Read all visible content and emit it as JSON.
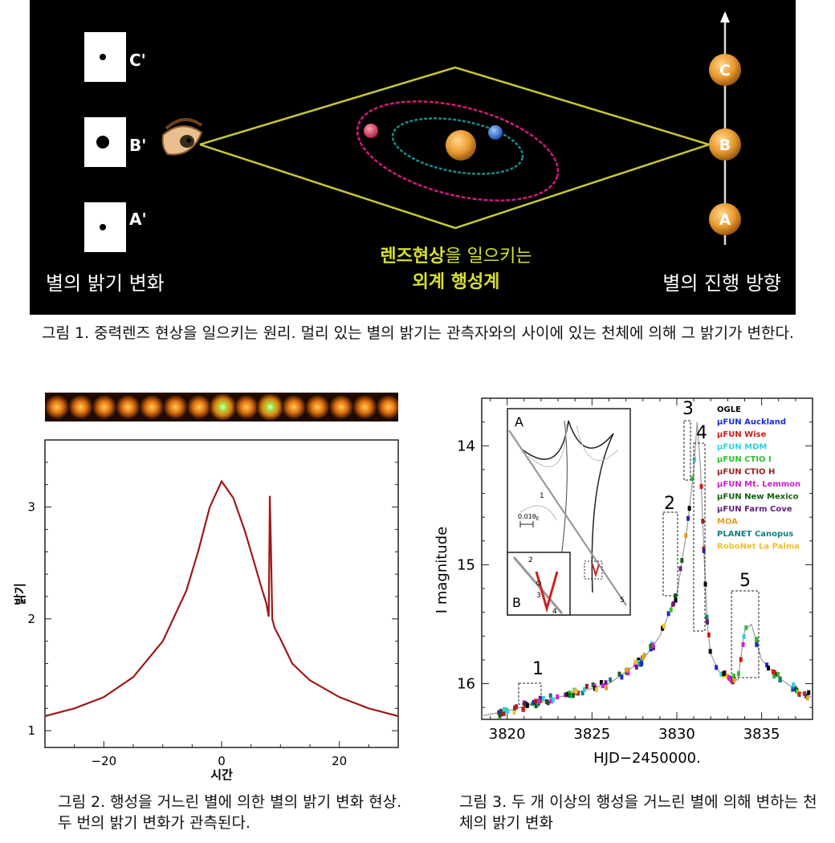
{
  "figure1": {
    "star_labels": [
      "C'",
      "B'",
      "A'"
    ],
    "positions": [
      "C",
      "B",
      "A"
    ],
    "left_caption": "별의 밝기 변화",
    "center_caption_highlight": "렌즈현상",
    "center_caption_rest": "을 일으키는",
    "center_caption_line2": "외계 행성계",
    "right_caption": "별의 진행 방향",
    "colors": {
      "lens_lines": "#c8c832",
      "orbit_outer": "#d01a7a",
      "orbit_inner": "#1a8a8a",
      "star": "#e89a30",
      "planet_red": "#e04060",
      "planet_blue": "#3070d0"
    }
  },
  "caption1": "그림 1. 중력렌즈 현상을 일으키는 원리. 멀리 있는 별의 밝기는 관측자와의 사이에 있는 천체에 의해 그 밝기가 변한다.",
  "figure2": {
    "ylabel": "밝기",
    "xlabel": "시간",
    "curve_color": "#a01818"
  },
  "caption2": "그림 2. 행성을 거느린 별에 의한 별의 밝기 변화 현상. 두 번의 밝기 변화가 관측된다.",
  "figure3": {
    "ylabel": "I magnitude",
    "xlabel": "HJD−2450000.",
    "inset_labels": {
      "a": "A",
      "b": "B",
      "scale": "0.01θ",
      "scale_sub": "E"
    },
    "inset_point_labels": [
      "1",
      "2",
      "3",
      "4",
      "5"
    ],
    "box_labels": [
      "1",
      "2",
      "3",
      "4",
      "5"
    ],
    "legend": [
      {
        "label": "OGLE",
        "color": "#000000"
      },
      {
        "label": "μFUN Auckland",
        "color": "#1a2ad0"
      },
      {
        "label": "μFUN Wise",
        "color": "#d01818"
      },
      {
        "label": "μFUN MDM",
        "color": "#30d0e0"
      },
      {
        "label": "μFUN CTIO I",
        "color": "#30c030"
      },
      {
        "label": "μFUN CTIO H",
        "color": "#a02020"
      },
      {
        "label": "μFUN Mt. Lemmon",
        "color": "#d020d0"
      },
      {
        "label": "μFUN New Mexico",
        "color": "#106010"
      },
      {
        "label": "μFUN Farm Cove",
        "color": "#602080"
      },
      {
        "label": "MOA",
        "color": "#e0a020"
      },
      {
        "label": "PLANET Canopus",
        "color": "#108080"
      },
      {
        "label": "RoboNet La Palma",
        "color": "#f0c030"
      }
    ]
  },
  "caption3": "그림 3. 두 개 이상의 행성을 거느린 별에 의해 변하는 천체의 밝기 변화",
  "chart_data": [
    {
      "type": "line",
      "title": "",
      "xlabel": "시간",
      "ylabel": "밝기",
      "xlim": [
        -30,
        30
      ],
      "ylim": [
        0.85,
        3.6
      ],
      "x_ticks": [
        -20,
        0,
        20
      ],
      "y_ticks": [
        1,
        2,
        3
      ],
      "series": [
        {
          "x": [
            -30,
            -25,
            -20,
            -15,
            -10,
            -6,
            -4,
            -2,
            0,
            2,
            4,
            6,
            7,
            7.6,
            8,
            8.2,
            8.4,
            8.6,
            9,
            10,
            12,
            15,
            20,
            25,
            30
          ],
          "y": [
            1.13,
            1.2,
            1.3,
            1.48,
            1.8,
            2.25,
            2.6,
            3.0,
            3.23,
            3.08,
            2.78,
            2.42,
            2.24,
            2.14,
            2.02,
            3.1,
            2.6,
            2.0,
            1.92,
            1.82,
            1.6,
            1.45,
            1.3,
            1.2,
            1.13
          ]
        }
      ]
    },
    {
      "type": "scatter",
      "title": "",
      "xlabel": "HJD−2450000.",
      "ylabel": "I magnitude",
      "xlim": [
        3818.5,
        3838
      ],
      "ylim": [
        16.3,
        13.6
      ],
      "x_ticks": [
        3820,
        3825,
        3830,
        3835
      ],
      "y_ticks": [
        14,
        15,
        16
      ],
      "model_curve": {
        "x": [
          3818.5,
          3820,
          3822,
          3824,
          3826,
          3828,
          3829,
          3830,
          3830.6,
          3831,
          3831.2,
          3831.4,
          3831.6,
          3831.8,
          3832,
          3832.5,
          3833,
          3833.6,
          3834,
          3834.4,
          3835,
          3836,
          3837,
          3838
        ],
        "y": [
          16.27,
          16.23,
          16.15,
          16.08,
          16.0,
          15.8,
          15.6,
          15.25,
          14.7,
          14.2,
          13.8,
          14.2,
          14.9,
          15.5,
          15.75,
          15.9,
          15.95,
          15.97,
          15.55,
          15.5,
          15.8,
          15.95,
          16.05,
          16.12
        ]
      }
    }
  ]
}
